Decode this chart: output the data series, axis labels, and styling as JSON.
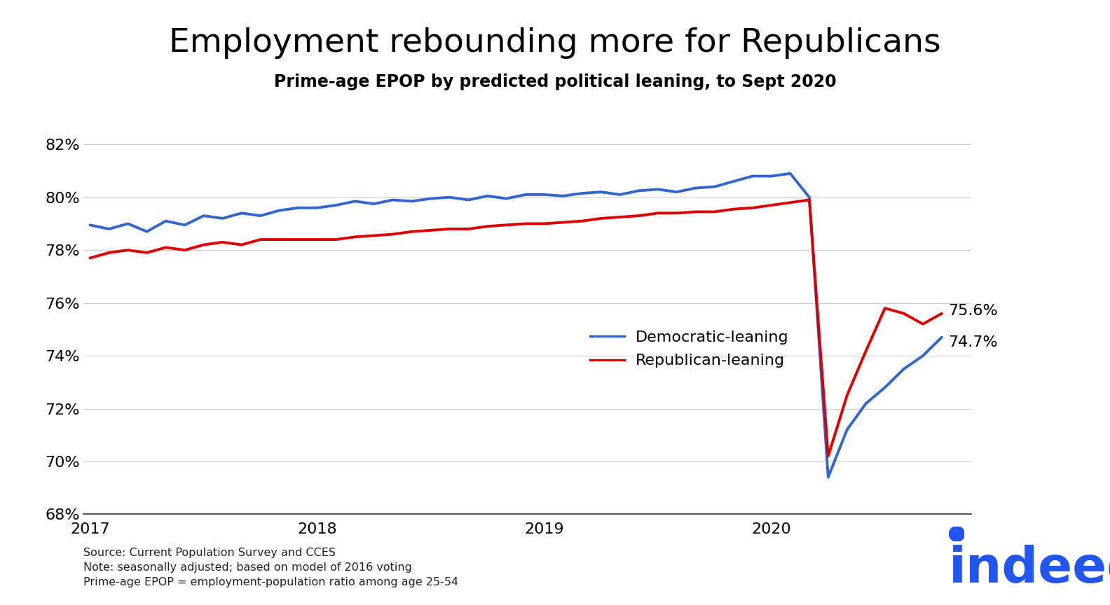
{
  "title": "Employment rebounding more for Republicans",
  "subtitle": "Prime-age EPOP by predicted political leaning, to Sept 2020",
  "source_text": "Source: Current Population Survey and CCES\nNote: seasonally adjusted; based on model of 2016 voting\nPrime-age EPOP = employment-population ratio among age 25-54",
  "ylim": [
    0.68,
    0.822
  ],
  "yticks": [
    0.68,
    0.7,
    0.72,
    0.74,
    0.76,
    0.78,
    0.8,
    0.82
  ],
  "dem_color": "#3366CC",
  "rep_color": "#DD0000",
  "dem_label": "Democratic-leaning",
  "rep_label": "Republican-leaning",
  "dem_end_label": "74.7%",
  "rep_end_label": "75.6%",
  "background_color": "#FFFFFF",
  "title_fontsize": 34,
  "subtitle_fontsize": 17,
  "indeed_color": "#2255EE",
  "x_dates": [
    2017.0,
    2017.083,
    2017.167,
    2017.25,
    2017.333,
    2017.417,
    2017.5,
    2017.583,
    2017.667,
    2017.75,
    2017.833,
    2017.917,
    2018.0,
    2018.083,
    2018.167,
    2018.25,
    2018.333,
    2018.417,
    2018.5,
    2018.583,
    2018.667,
    2018.75,
    2018.833,
    2018.917,
    2019.0,
    2019.083,
    2019.167,
    2019.25,
    2019.333,
    2019.417,
    2019.5,
    2019.583,
    2019.667,
    2019.75,
    2019.833,
    2019.917,
    2020.0,
    2020.083,
    2020.167,
    2020.25,
    2020.333,
    2020.417,
    2020.5,
    2020.583,
    2020.667,
    2020.75
  ],
  "dem_values": [
    0.7895,
    0.788,
    0.79,
    0.787,
    0.791,
    0.7895,
    0.793,
    0.792,
    0.794,
    0.793,
    0.795,
    0.796,
    0.796,
    0.797,
    0.7985,
    0.7975,
    0.799,
    0.7985,
    0.7995,
    0.8,
    0.799,
    0.8005,
    0.7995,
    0.801,
    0.801,
    0.8005,
    0.8015,
    0.802,
    0.801,
    0.8025,
    0.803,
    0.802,
    0.8035,
    0.804,
    0.806,
    0.808,
    0.808,
    0.809,
    0.8,
    0.694,
    0.712,
    0.722,
    0.728,
    0.735,
    0.74,
    0.747
  ],
  "rep_values": [
    0.777,
    0.779,
    0.78,
    0.779,
    0.781,
    0.78,
    0.782,
    0.783,
    0.782,
    0.784,
    0.784,
    0.784,
    0.784,
    0.784,
    0.785,
    0.7855,
    0.786,
    0.787,
    0.7875,
    0.788,
    0.788,
    0.789,
    0.7895,
    0.79,
    0.79,
    0.7905,
    0.791,
    0.792,
    0.7925,
    0.793,
    0.794,
    0.794,
    0.7945,
    0.7945,
    0.7955,
    0.796,
    0.797,
    0.798,
    0.799,
    0.702,
    0.725,
    0.742,
    0.758,
    0.756,
    0.752,
    0.756
  ],
  "xtick_positions": [
    2017.0,
    2018.0,
    2019.0,
    2020.0
  ],
  "xtick_labels": [
    "2017",
    "2018",
    "2019",
    "2020"
  ],
  "xlim_left": 2016.97,
  "xlim_right": 2020.88
}
